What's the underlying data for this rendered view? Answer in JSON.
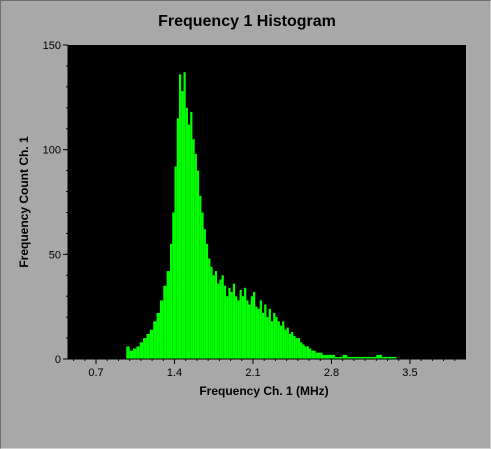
{
  "chart_data": {
    "type": "bar",
    "title": "Frequency 1 Histogram",
    "xlabel": "Frequency  Ch. 1 (MHz)",
    "ylabel": "Frequency Count Ch. 1",
    "xlim": [
      0.45,
      4.0
    ],
    "ylim": [
      0,
      150
    ],
    "x_ticks": [
      "0.7",
      "1.4",
      "2.1",
      "2.8",
      "3.5"
    ],
    "x_tick_values": [
      0.7,
      1.4,
      2.1,
      2.8,
      3.5
    ],
    "y_ticks": [
      "0",
      "50",
      "100",
      "150"
    ],
    "y_tick_values": [
      0,
      50,
      100,
      150
    ],
    "plot_background": "#000000",
    "bar_color": "#00ff00",
    "grid": false,
    "series": [
      {
        "x": [
          0.97,
          1.0,
          1.03,
          1.06,
          1.09,
          1.12,
          1.15,
          1.18,
          1.21,
          1.24,
          1.27,
          1.3,
          1.33,
          1.36,
          1.38,
          1.4,
          1.42,
          1.44,
          1.46,
          1.48,
          1.5,
          1.52,
          1.54,
          1.56,
          1.58,
          1.6,
          1.62,
          1.64,
          1.66,
          1.68,
          1.7,
          1.72,
          1.74,
          1.76,
          1.78,
          1.8,
          1.82,
          1.84,
          1.86,
          1.88,
          1.9,
          1.92,
          1.94,
          1.96,
          1.98,
          2.0,
          2.02,
          2.04,
          2.06,
          2.08,
          2.1,
          2.12,
          2.14,
          2.16,
          2.18,
          2.2,
          2.22,
          2.24,
          2.26,
          2.28,
          2.3,
          2.32,
          2.34,
          2.36,
          2.38,
          2.4,
          2.42,
          2.44,
          2.46,
          2.48,
          2.5,
          2.52,
          2.54,
          2.56,
          2.58,
          2.6,
          2.62,
          2.64,
          2.66,
          2.68,
          2.7,
          2.72,
          2.74,
          2.76,
          2.78,
          2.8,
          2.83,
          2.86,
          2.9,
          2.94,
          2.98,
          3.02,
          3.06,
          3.1,
          3.15,
          3.2,
          3.25,
          3.3,
          3.35
        ],
        "values": [
          6,
          4,
          5,
          6,
          8,
          10,
          12,
          14,
          18,
          22,
          28,
          35,
          42,
          55,
          70,
          92,
          115,
          136,
          128,
          137,
          120,
          112,
          118,
          105,
          98,
          90,
          78,
          70,
          62,
          55,
          48,
          44,
          40,
          42,
          36,
          38,
          40,
          35,
          30,
          34,
          32,
          36,
          30,
          28,
          33,
          30,
          34,
          28,
          26,
          30,
          32,
          25,
          24,
          28,
          22,
          26,
          20,
          24,
          18,
          22,
          20,
          18,
          16,
          18,
          14,
          15,
          12,
          13,
          11,
          10,
          10,
          8,
          7,
          6,
          6,
          5,
          4,
          4,
          3,
          3,
          3,
          2,
          2,
          2,
          2,
          2,
          1,
          1,
          2,
          1,
          1,
          1,
          1,
          1,
          1,
          2,
          1,
          1,
          1
        ]
      }
    ]
  }
}
